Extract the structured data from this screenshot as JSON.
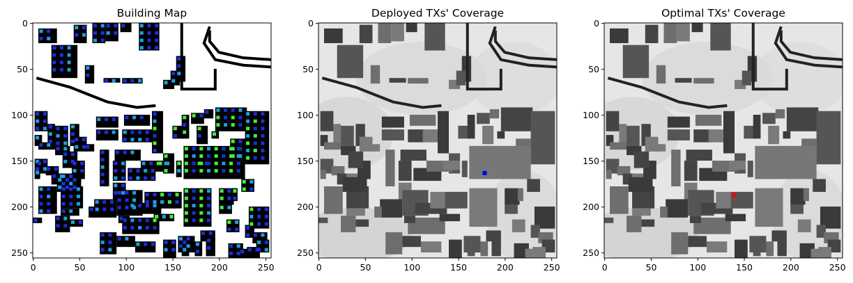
{
  "chart_data": [
    {
      "type": "heatmap",
      "title": "Building Map",
      "xlim": [
        0,
        255
      ],
      "ylim": [
        255,
        0
      ],
      "xticks": [
        0,
        50,
        100,
        150,
        200,
        250
      ],
      "yticks": [
        0,
        50,
        100,
        150,
        200,
        250
      ],
      "xtick_labels": [
        "0",
        "50",
        "100",
        "150",
        "200",
        "250"
      ],
      "ytick_labels": [
        "0",
        "50",
        "100",
        "150",
        "200",
        "250"
      ],
      "grid": false,
      "markers": []
    },
    {
      "type": "heatmap",
      "title": "Deployed TXs' Coverage",
      "xlim": [
        0,
        255
      ],
      "ylim": [
        255,
        0
      ],
      "xticks": [
        0,
        50,
        100,
        150,
        200,
        250
      ],
      "yticks": [
        0,
        50,
        100,
        150,
        200,
        250
      ],
      "xtick_labels": [
        "0",
        "50",
        "100",
        "150",
        "200",
        "250"
      ],
      "ytick_labels": [
        "0",
        "50",
        "100",
        "150",
        "200",
        "250"
      ],
      "grid": false,
      "markers": [
        {
          "x": 178,
          "y": 163,
          "color": "#0000ff"
        }
      ]
    },
    {
      "type": "heatmap",
      "title": "Optimal TXs' Coverage",
      "xlim": [
        0,
        255
      ],
      "ylim": [
        255,
        0
      ],
      "xticks": [
        0,
        50,
        100,
        150,
        200,
        250
      ],
      "yticks": [
        0,
        50,
        100,
        150,
        200,
        250
      ],
      "xtick_labels": [
        "0",
        "50",
        "100",
        "150",
        "200",
        "250"
      ],
      "ytick_labels": [
        "0",
        "50",
        "100",
        "150",
        "200",
        "250"
      ],
      "grid": false,
      "markers": [
        {
          "x": 139,
          "y": 187,
          "color": "#ff0000"
        }
      ]
    }
  ],
  "colors": {
    "building": "#000000",
    "ground_map": "#ffffff",
    "coverage_bg": "#e6e6e6",
    "dot_dark": "#1a2edc",
    "dot_light": "#1aa0e0",
    "dot_green": "#3ef03e"
  }
}
